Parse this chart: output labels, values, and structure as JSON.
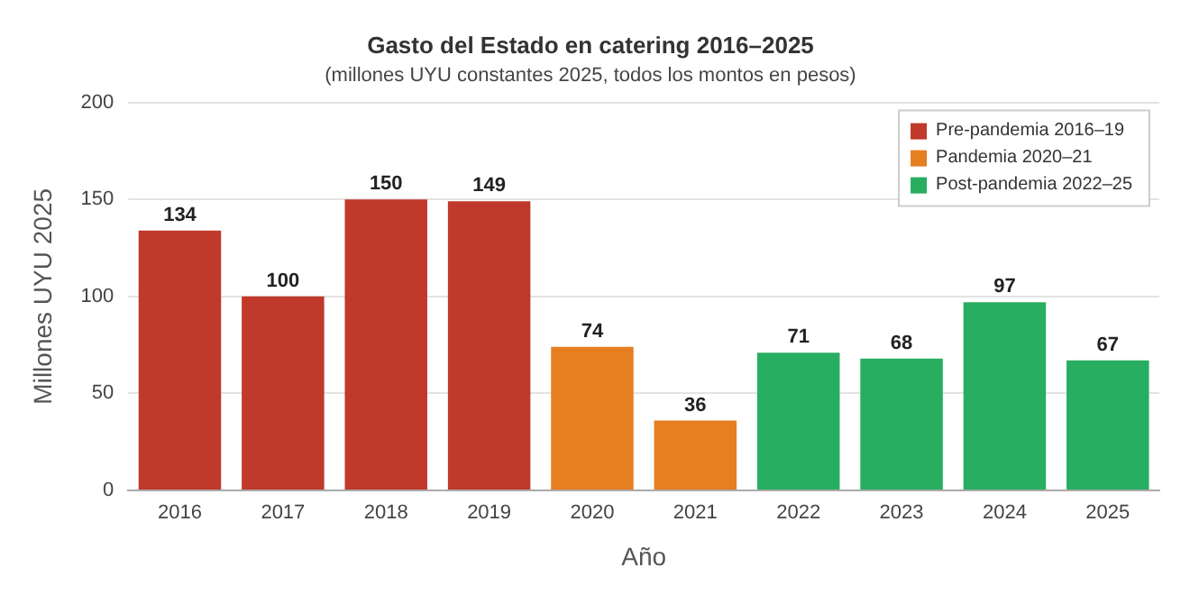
{
  "chart_data": {
    "type": "bar",
    "title": "Gasto del Estado en catering 2016–2025",
    "subtitle": "(millones UYU constantes 2025, todos los montos en pesos)",
    "xlabel": "Año",
    "ylabel": "Millones UYU 2025",
    "categories": [
      "2016",
      "2017",
      "2018",
      "2019",
      "2020",
      "2021",
      "2022",
      "2023",
      "2024",
      "2025"
    ],
    "series": [
      {
        "name": "Pre-pandemia 2016–19",
        "color": "#c0392b",
        "values": [
          134,
          100,
          150,
          149,
          null,
          null,
          null,
          null,
          null,
          null
        ]
      },
      {
        "name": "Pandemia 2020–21",
        "color": "#e67e22",
        "values": [
          null,
          null,
          null,
          null,
          74,
          36,
          null,
          null,
          null,
          null
        ]
      },
      {
        "name": "Post-pandemia 2022–25",
        "color": "#27ae60",
        "values": [
          null,
          null,
          null,
          null,
          null,
          null,
          71,
          68,
          97,
          67
        ]
      }
    ],
    "ylim": [
      0,
      200
    ],
    "yticks": [
      0,
      50,
      100,
      150,
      200
    ],
    "grid": "y",
    "legend": "top right",
    "data_labels": true
  }
}
